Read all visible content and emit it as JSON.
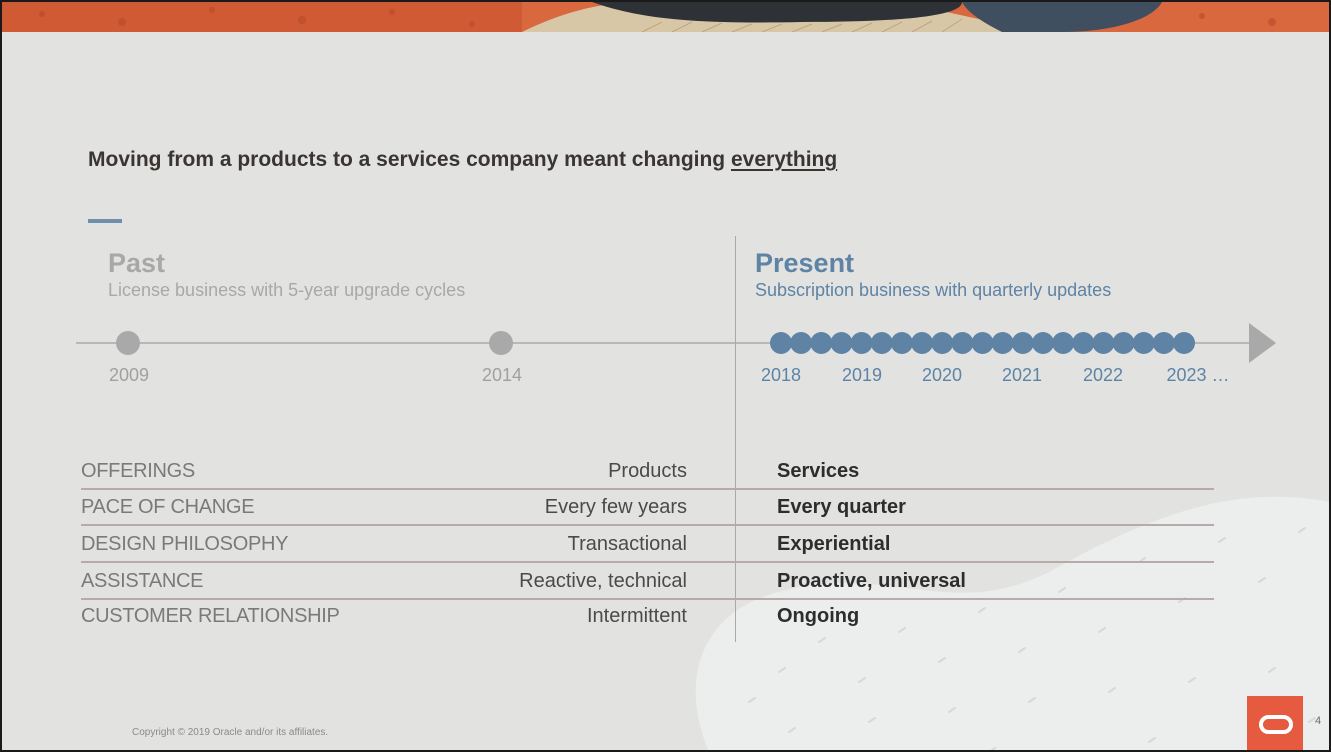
{
  "title": {
    "text": "Moving from a products to a services company meant changing ",
    "emphasis": "everything"
  },
  "past": {
    "heading": "Past",
    "subtitle": "License business with 5-year upgrade cycles",
    "years": [
      "2009",
      "2014"
    ]
  },
  "present": {
    "heading": "Present",
    "subtitle": "Subscription business with quarterly updates",
    "years": [
      "2018",
      "2019",
      "2020",
      "2021",
      "2022",
      "2023 …"
    ],
    "dot_count": 21
  },
  "rows": [
    {
      "label": "OFFERINGS",
      "past": "Products",
      "present": "Services"
    },
    {
      "label": "PACE OF CHANGE",
      "past": "Every few years",
      "present": "Every quarter"
    },
    {
      "label": "DESIGN PHILOSOPHY",
      "past": "Transactional",
      "present": "Experiential"
    },
    {
      "label": "ASSISTANCE",
      "past": "Reactive, technical",
      "present": "Proactive, universal"
    },
    {
      "label": "CUSTOMER RELATIONSHIP",
      "past": "Intermittent",
      "present": "Ongoing"
    }
  ],
  "copyright": "Copyright © 2019 Oracle and/or its affiliates.",
  "page_number": "4",
  "colors": {
    "accent_blue": "#5e83a5",
    "past_gray": "#a8a8a8",
    "oracle_red": "#e65a3f",
    "background": "#e2e3e1"
  },
  "icons": {
    "logo": "oracle-logo-icon",
    "arrow": "timeline-arrow-icon"
  }
}
